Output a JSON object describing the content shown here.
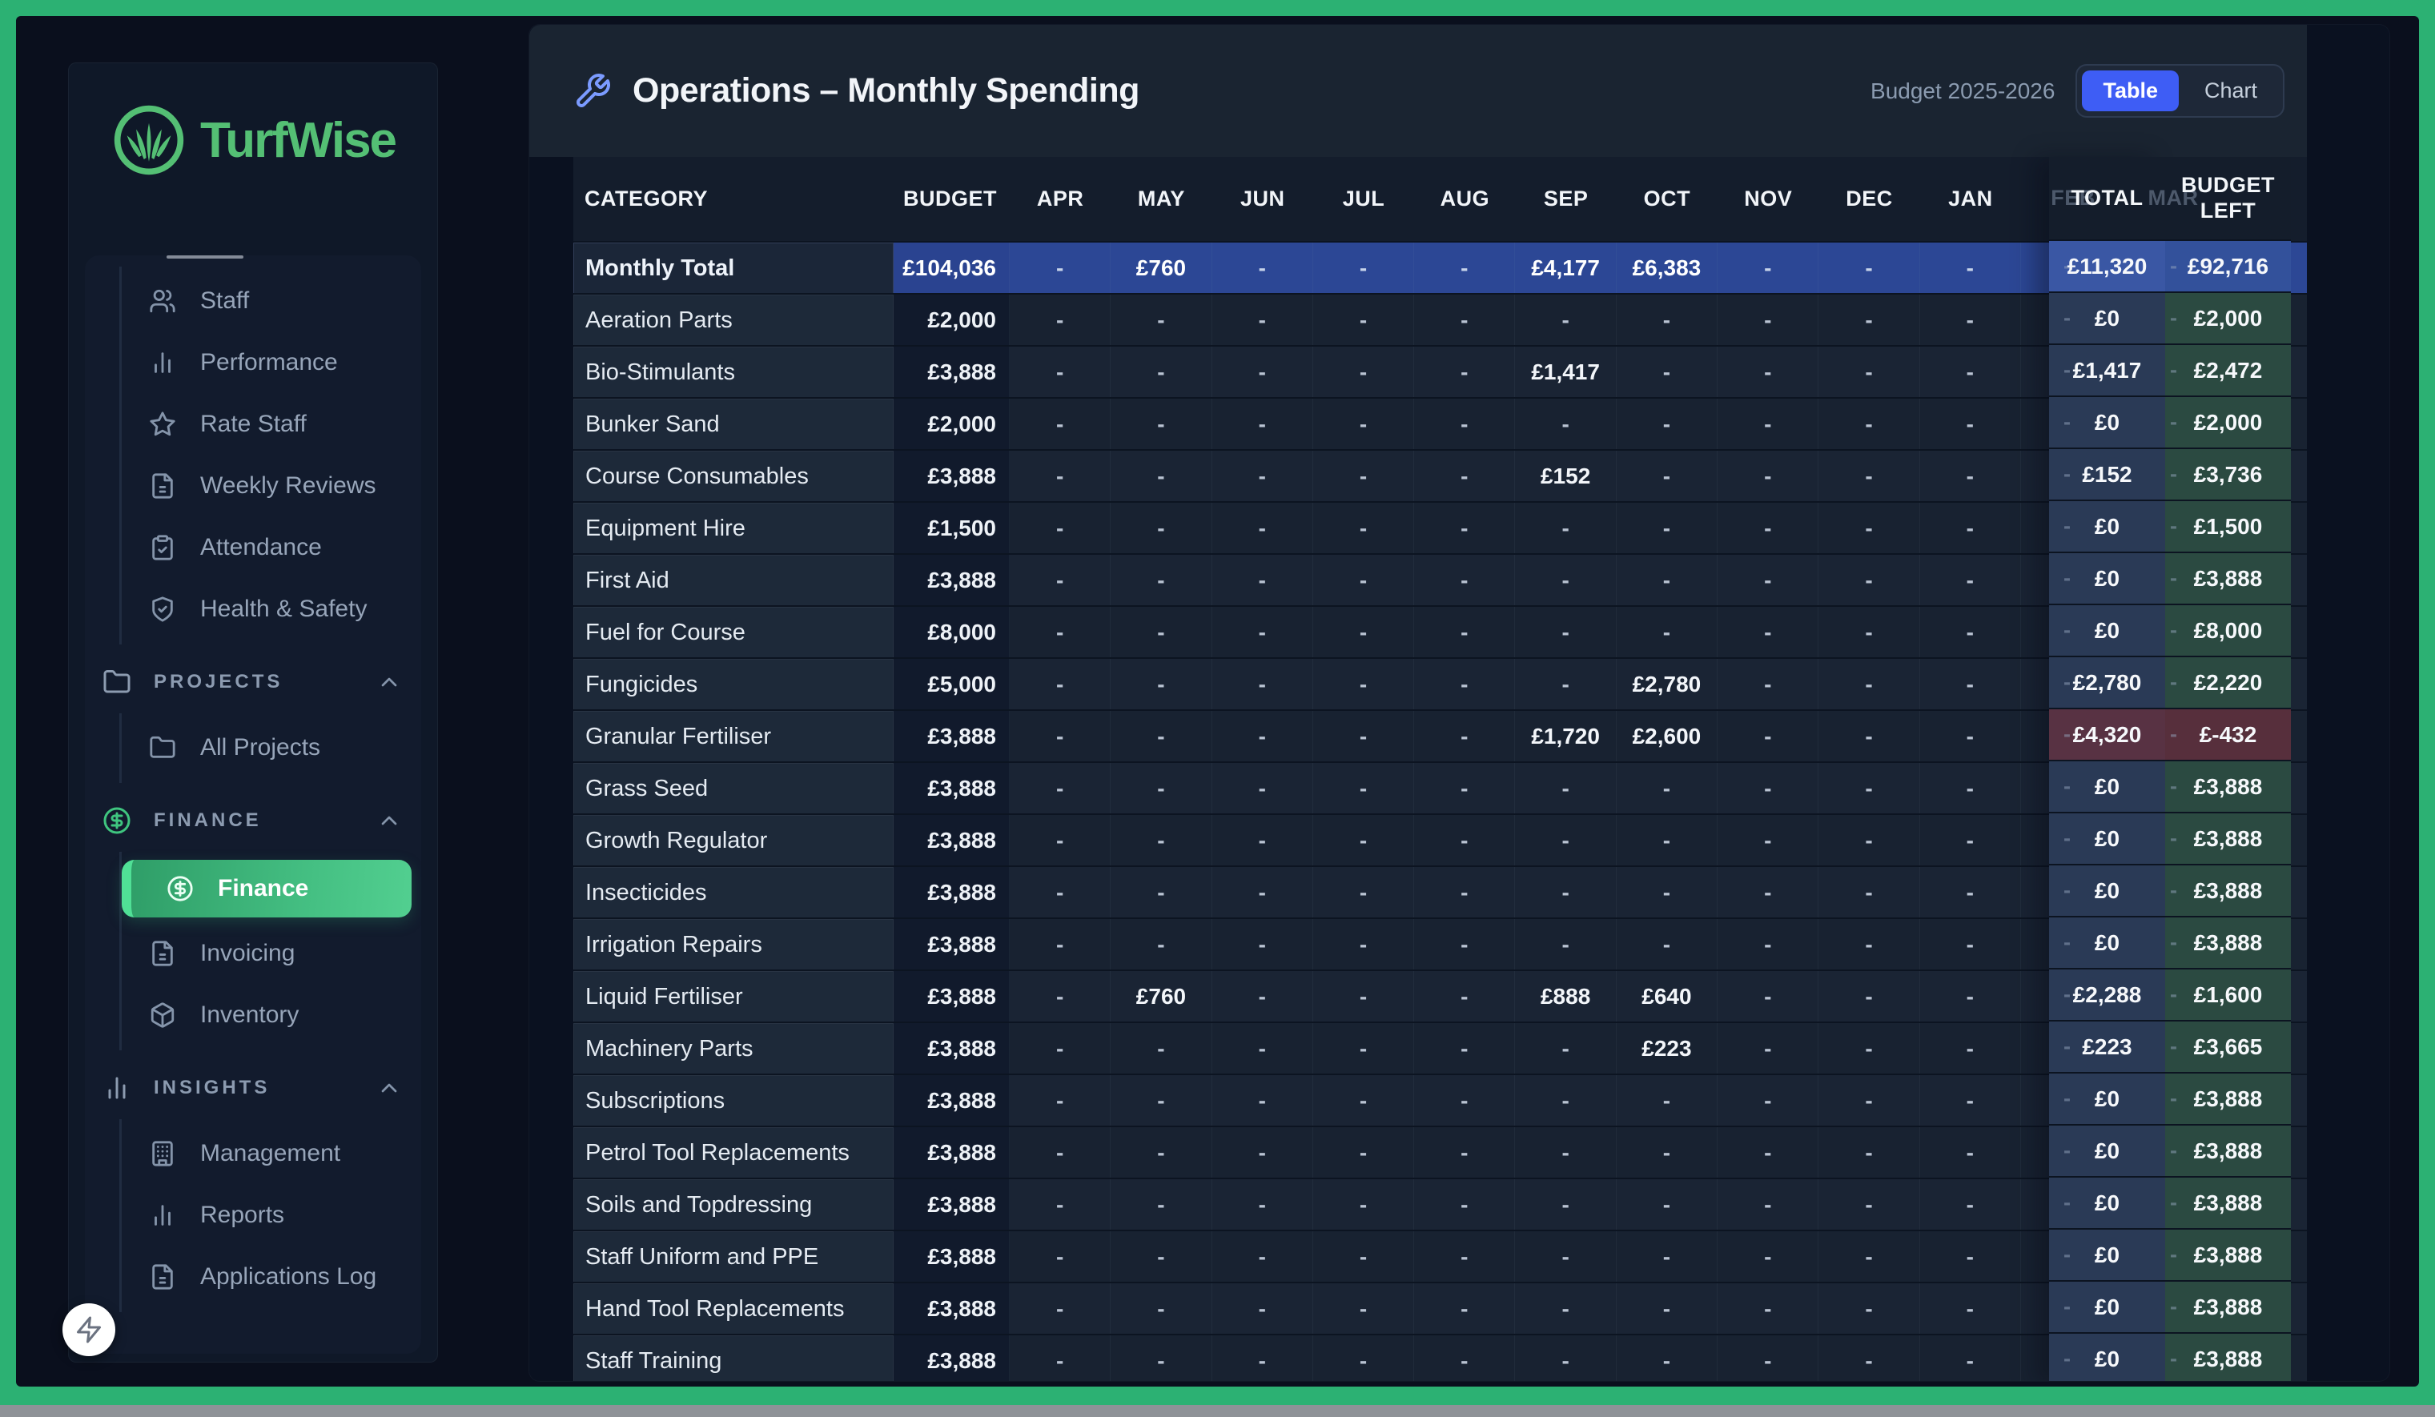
{
  "frame": {
    "border_color": "#2cb173",
    "bottom_bar_color": "#8e9297"
  },
  "sidebar": {
    "logo": {
      "text": "TurfWise",
      "color": "#54bf74",
      "icon": "grass-circle"
    },
    "primary_items": [
      {
        "label": "Staff",
        "icon": "users"
      },
      {
        "label": "Performance",
        "icon": "bar-chart"
      },
      {
        "label": "Rate Staff",
        "icon": "star"
      },
      {
        "label": "Weekly Reviews",
        "icon": "file-text"
      },
      {
        "label": "Attendance",
        "icon": "clipboard-check"
      },
      {
        "label": "Health & Safety",
        "icon": "shield-check"
      }
    ],
    "sections": [
      {
        "label": "PROJECTS",
        "icon": "folder",
        "chevron": "up",
        "items": [
          {
            "label": "All Projects",
            "icon": "folder"
          }
        ]
      },
      {
        "label": "FINANCE",
        "icon": "dollar-circle",
        "icon_color": "green",
        "chevron": "up",
        "items": [
          {
            "label": "Finance",
            "icon": "dollar-circle",
            "active": true
          },
          {
            "label": "Invoicing",
            "icon": "file-text"
          },
          {
            "label": "Inventory",
            "icon": "box"
          }
        ]
      },
      {
        "label": "INSIGHTS",
        "icon": "bar-chart",
        "chevron": "up",
        "items": [
          {
            "label": "Management",
            "icon": "building"
          },
          {
            "label": "Reports",
            "icon": "bar-chart"
          },
          {
            "label": "Applications Log",
            "icon": "file-text"
          }
        ]
      }
    ],
    "fab_icon": "lightning"
  },
  "header": {
    "icon": "wrench",
    "title": "Operations – Monthly Spending",
    "budget_label": "Budget 2025-2026",
    "views": [
      {
        "label": "Table",
        "active": true
      },
      {
        "label": "Chart",
        "active": false
      }
    ]
  },
  "table": {
    "columns": [
      "CATEGORY",
      "BUDGET",
      "APR",
      "MAY",
      "JUN",
      "JUL",
      "AUG",
      "SEP",
      "OCT",
      "NOV",
      "DEC",
      "JAN",
      "FEB",
      "MAR"
    ],
    "overlay_columns": [
      {
        "label": "TOTAL",
        "ghost_month": "FEB"
      },
      {
        "label": "BUDGET LEFT",
        "ghost_month": "MAR"
      }
    ],
    "rows": [
      {
        "category": "Monthly Total",
        "budget": "£104,036",
        "months": [
          "-",
          "£760",
          "-",
          "-",
          "-",
          "£4,177",
          "£6,383",
          "-",
          "-",
          "-",
          "-",
          "-"
        ],
        "total": "£11,320",
        "budget_left": "£92,716",
        "variant": "highlight"
      },
      {
        "category": "Aeration Parts",
        "budget": "£2,000",
        "months": [
          "-",
          "-",
          "-",
          "-",
          "-",
          "-",
          "-",
          "-",
          "-",
          "-",
          "-",
          "-"
        ],
        "total": "£0",
        "budget_left": "£2,000",
        "variant": "normal"
      },
      {
        "category": "Bio-Stimulants",
        "budget": "£3,888",
        "months": [
          "-",
          "-",
          "-",
          "-",
          "-",
          "£1,417",
          "-",
          "-",
          "-",
          "-",
          "-",
          "-"
        ],
        "total": "£1,417",
        "budget_left": "£2,472",
        "variant": "normal"
      },
      {
        "category": "Bunker Sand",
        "budget": "£2,000",
        "months": [
          "-",
          "-",
          "-",
          "-",
          "-",
          "-",
          "-",
          "-",
          "-",
          "-",
          "-",
          "-"
        ],
        "total": "£0",
        "budget_left": "£2,000",
        "variant": "normal"
      },
      {
        "category": "Course Consumables",
        "budget": "£3,888",
        "months": [
          "-",
          "-",
          "-",
          "-",
          "-",
          "£152",
          "-",
          "-",
          "-",
          "-",
          "-",
          "-"
        ],
        "total": "£152",
        "budget_left": "£3,736",
        "variant": "normal"
      },
      {
        "category": "Equipment Hire",
        "budget": "£1,500",
        "months": [
          "-",
          "-",
          "-",
          "-",
          "-",
          "-",
          "-",
          "-",
          "-",
          "-",
          "-",
          "-"
        ],
        "total": "£0",
        "budget_left": "£1,500",
        "variant": "normal"
      },
      {
        "category": "First Aid",
        "budget": "£3,888",
        "months": [
          "-",
          "-",
          "-",
          "-",
          "-",
          "-",
          "-",
          "-",
          "-",
          "-",
          "-",
          "-"
        ],
        "total": "£0",
        "budget_left": "£3,888",
        "variant": "normal"
      },
      {
        "category": "Fuel for Course",
        "budget": "£8,000",
        "months": [
          "-",
          "-",
          "-",
          "-",
          "-",
          "-",
          "-",
          "-",
          "-",
          "-",
          "-",
          "-"
        ],
        "total": "£0",
        "budget_left": "£8,000",
        "variant": "normal"
      },
      {
        "category": "Fungicides",
        "budget": "£5,000",
        "months": [
          "-",
          "-",
          "-",
          "-",
          "-",
          "-",
          "£2,780",
          "-",
          "-",
          "-",
          "-",
          "-"
        ],
        "total": "£2,780",
        "budget_left": "£2,220",
        "variant": "normal"
      },
      {
        "category": "Granular Fertiliser",
        "budget": "£3,888",
        "months": [
          "-",
          "-",
          "-",
          "-",
          "-",
          "£1,720",
          "£2,600",
          "-",
          "-",
          "-",
          "-",
          "-"
        ],
        "total": "£4,320",
        "budget_left": "£-432",
        "variant": "negative"
      },
      {
        "category": "Grass Seed",
        "budget": "£3,888",
        "months": [
          "-",
          "-",
          "-",
          "-",
          "-",
          "-",
          "-",
          "-",
          "-",
          "-",
          "-",
          "-"
        ],
        "total": "£0",
        "budget_left": "£3,888",
        "variant": "normal"
      },
      {
        "category": "Growth Regulator",
        "budget": "£3,888",
        "months": [
          "-",
          "-",
          "-",
          "-",
          "-",
          "-",
          "-",
          "-",
          "-",
          "-",
          "-",
          "-"
        ],
        "total": "£0",
        "budget_left": "£3,888",
        "variant": "normal"
      },
      {
        "category": "Insecticides",
        "budget": "£3,888",
        "months": [
          "-",
          "-",
          "-",
          "-",
          "-",
          "-",
          "-",
          "-",
          "-",
          "-",
          "-",
          "-"
        ],
        "total": "£0",
        "budget_left": "£3,888",
        "variant": "normal"
      },
      {
        "category": "Irrigation Repairs",
        "budget": "£3,888",
        "months": [
          "-",
          "-",
          "-",
          "-",
          "-",
          "-",
          "-",
          "-",
          "-",
          "-",
          "-",
          "-"
        ],
        "total": "£0",
        "budget_left": "£3,888",
        "variant": "normal"
      },
      {
        "category": "Liquid Fertiliser",
        "budget": "£3,888",
        "months": [
          "-",
          "£760",
          "-",
          "-",
          "-",
          "£888",
          "£640",
          "-",
          "-",
          "-",
          "-",
          "-"
        ],
        "total": "£2,288",
        "budget_left": "£1,600",
        "variant": "normal"
      },
      {
        "category": "Machinery Parts",
        "budget": "£3,888",
        "months": [
          "-",
          "-",
          "-",
          "-",
          "-",
          "-",
          "£223",
          "-",
          "-",
          "-",
          "-",
          "-"
        ],
        "total": "£223",
        "budget_left": "£3,665",
        "variant": "normal"
      },
      {
        "category": "Subscriptions",
        "budget": "£3,888",
        "months": [
          "-",
          "-",
          "-",
          "-",
          "-",
          "-",
          "-",
          "-",
          "-",
          "-",
          "-",
          "-"
        ],
        "total": "£0",
        "budget_left": "£3,888",
        "variant": "normal"
      },
      {
        "category": "Petrol Tool Replacements",
        "budget": "£3,888",
        "months": [
          "-",
          "-",
          "-",
          "-",
          "-",
          "-",
          "-",
          "-",
          "-",
          "-",
          "-",
          "-"
        ],
        "total": "£0",
        "budget_left": "£3,888",
        "variant": "normal"
      },
      {
        "category": "Soils and Topdressing",
        "budget": "£3,888",
        "months": [
          "-",
          "-",
          "-",
          "-",
          "-",
          "-",
          "-",
          "-",
          "-",
          "-",
          "-",
          "-"
        ],
        "total": "£0",
        "budget_left": "£3,888",
        "variant": "normal"
      },
      {
        "category": "Staff Uniform and PPE",
        "budget": "£3,888",
        "months": [
          "-",
          "-",
          "-",
          "-",
          "-",
          "-",
          "-",
          "-",
          "-",
          "-",
          "-",
          "-"
        ],
        "total": "£0",
        "budget_left": "£3,888",
        "variant": "normal"
      },
      {
        "category": "Hand Tool Replacements",
        "budget": "£3,888",
        "months": [
          "-",
          "-",
          "-",
          "-",
          "-",
          "-",
          "-",
          "-",
          "-",
          "-",
          "-",
          "-"
        ],
        "total": "£0",
        "budget_left": "£3,888",
        "variant": "normal"
      },
      {
        "category": "Staff Training",
        "budget": "£3,888",
        "months": [
          "-",
          "-",
          "-",
          "-",
          "-",
          "-",
          "-",
          "-",
          "-",
          "-",
          "-",
          "-"
        ],
        "total": "£0",
        "budget_left": "£3,888",
        "variant": "normal"
      }
    ]
  },
  "colors": {
    "accent_blue": "#3e5df5",
    "highlight_row": "#2c4795",
    "negative_cell": "#583243",
    "total_overlay": "#2a3a56",
    "budget_left_overlay": "#2b4a41",
    "brand_green": "#54bf74"
  }
}
